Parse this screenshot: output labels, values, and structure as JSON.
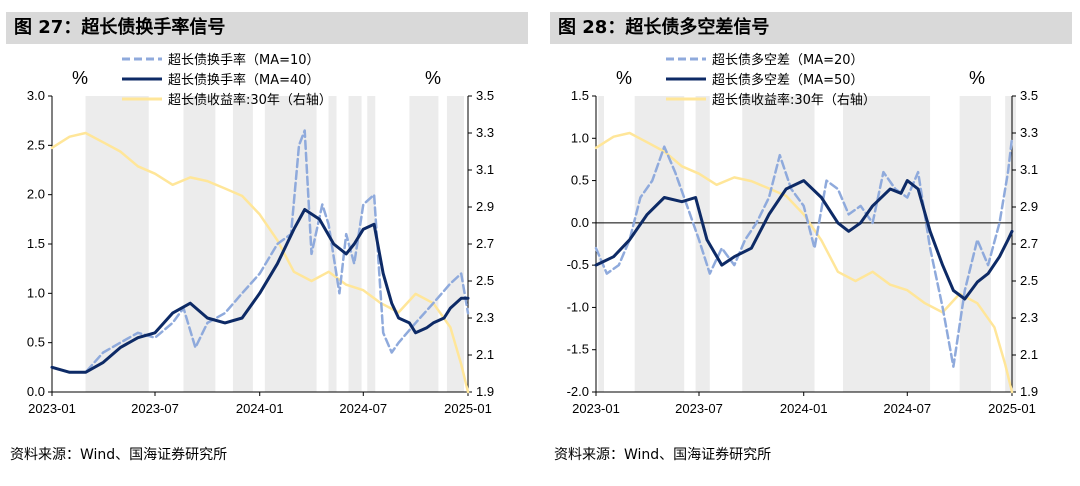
{
  "charts": [
    {
      "title": "图 27：超长债换手率信号",
      "source": "资料来源：Wind、国海证券研究所",
      "left_unit": "%",
      "right_unit": "%",
      "legend": [
        {
          "label": "超长债换手率（MA=10）",
          "color": "#8faadc",
          "style": "dashed"
        },
        {
          "label": "超长债换手率（MA=40）",
          "color": "#0d2a66",
          "style": "solid"
        },
        {
          "label": "超长债收益率:30年（右轴）",
          "color": "#ffe699",
          "style": "solid"
        }
      ],
      "y_ticks": [
        "3.0",
        "2.5",
        "2.0",
        "1.5",
        "1.0",
        "0.5",
        "0.0"
      ],
      "y2_ticks": [
        "3.5",
        "3.3",
        "3.1",
        "2.9",
        "2.7",
        "2.5",
        "2.3",
        "2.1",
        "1.9"
      ],
      "x_ticks": [
        "2023-01",
        "2023-07",
        "2024-01",
        "2024-07",
        "2025-01"
      ]
    },
    {
      "title": "图 28：超长债多空差信号",
      "source": "资料来源：Wind、国海证券研究所",
      "left_unit": "%",
      "right_unit": "%",
      "legend": [
        {
          "label": "超长债多空差（MA=20）",
          "color": "#8faadc",
          "style": "dashed"
        },
        {
          "label": "超长债多空差（MA=50）",
          "color": "#0d2a66",
          "style": "solid"
        },
        {
          "label": "超长债收益率:30年（右轴）",
          "color": "#ffe699",
          "style": "solid"
        }
      ],
      "y_ticks": [
        "1.5",
        "1.0",
        "0.5",
        "0.0",
        "-0.5",
        "-1.0",
        "-1.5",
        "-2.0"
      ],
      "y2_ticks": [
        "3.5",
        "3.3",
        "3.1",
        "2.9",
        "2.7",
        "2.5",
        "2.3",
        "2.1",
        "1.9"
      ],
      "x_ticks": [
        "2023-01",
        "2023-07",
        "2024-01",
        "2024-07",
        "2025-01"
      ]
    }
  ],
  "chart_data": [
    {
      "type": "line",
      "x_range": [
        "2023-01",
        "2025-01"
      ],
      "ylim": [
        0,
        3.0
      ],
      "y2lim": [
        1.9,
        3.5
      ],
      "shaded_periods": [
        [
          "2023-03",
          "2023-06-20"
        ],
        [
          "2023-08-20",
          "2023-10-15"
        ],
        [
          "2023-11-15",
          "2023-12-20"
        ],
        [
          "2024-01-10",
          "2024-04-10"
        ],
        [
          "2024-05-01",
          "2024-05-15"
        ],
        [
          "2024-06-05",
          "2024-06-28"
        ],
        [
          "2024-07-08",
          "2024-07-22"
        ],
        [
          "2024-09-20",
          "2024-11-10"
        ],
        [
          "2024-11-25",
          "2024-12-25"
        ]
      ],
      "series": [
        {
          "name": "超长债换手率（MA=10）",
          "axis": "left",
          "color": "#8faadc",
          "x": [
            "2023-01-01",
            "2023-02-01",
            "2023-03-01",
            "2023-04-01",
            "2023-05-01",
            "2023-06-01",
            "2023-07-01",
            "2023-08-01",
            "2023-08-20",
            "2023-09-10",
            "2023-10-01",
            "2023-11-01",
            "2023-12-01",
            "2024-01-01",
            "2024-02-01",
            "2024-02-25",
            "2024-03-10",
            "2024-03-20",
            "2024-04-01",
            "2024-04-20",
            "2024-05-01",
            "2024-05-20",
            "2024-06-01",
            "2024-06-15",
            "2024-07-01",
            "2024-07-20",
            "2024-08-05",
            "2024-08-20",
            "2024-09-01",
            "2024-10-01",
            "2024-11-01",
            "2024-12-01",
            "2024-12-20",
            "2025-01-01"
          ],
          "y": [
            0.25,
            0.2,
            0.2,
            0.4,
            0.5,
            0.6,
            0.55,
            0.7,
            0.85,
            0.45,
            0.7,
            0.8,
            1.0,
            1.2,
            1.5,
            1.6,
            2.5,
            2.65,
            1.4,
            1.9,
            1.7,
            1.0,
            1.6,
            1.3,
            1.9,
            2.0,
            0.6,
            0.4,
            0.5,
            0.7,
            0.9,
            1.1,
            1.2,
            0.8
          ]
        },
        {
          "name": "超长债换手率（MA=40）",
          "axis": "left",
          "color": "#0d2a66",
          "x": [
            "2023-01-01",
            "2023-02-01",
            "2023-03-01",
            "2023-04-01",
            "2023-05-01",
            "2023-06-01",
            "2023-07-01",
            "2023-08-01",
            "2023-09-01",
            "2023-10-01",
            "2023-11-01",
            "2023-12-01",
            "2024-01-01",
            "2024-02-01",
            "2024-03-01",
            "2024-03-20",
            "2024-04-15",
            "2024-05-10",
            "2024-06-01",
            "2024-06-15",
            "2024-07-01",
            "2024-07-20",
            "2024-08-05",
            "2024-08-20",
            "2024-09-01",
            "2024-09-20",
            "2024-10-01",
            "2024-10-20",
            "2024-11-01",
            "2024-11-20",
            "2024-12-01",
            "2024-12-20",
            "2025-01-01"
          ],
          "y": [
            0.25,
            0.2,
            0.2,
            0.3,
            0.45,
            0.55,
            0.6,
            0.8,
            0.9,
            0.75,
            0.7,
            0.75,
            1.0,
            1.3,
            1.65,
            1.85,
            1.75,
            1.5,
            1.4,
            1.5,
            1.65,
            1.7,
            1.2,
            0.9,
            0.75,
            0.7,
            0.6,
            0.65,
            0.7,
            0.75,
            0.85,
            0.95,
            0.95
          ]
        },
        {
          "name": "超长债收益率:30年（右轴）",
          "axis": "right",
          "color": "#ffe699",
          "x": [
            "2023-01-01",
            "2023-02-01",
            "2023-03-01",
            "2023-04-01",
            "2023-05-01",
            "2023-06-01",
            "2023-07-01",
            "2023-08-01",
            "2023-09-01",
            "2023-10-01",
            "2023-11-01",
            "2023-12-01",
            "2024-01-01",
            "2024-02-01",
            "2024-03-01",
            "2024-04-01",
            "2024-05-01",
            "2024-06-01",
            "2024-07-01",
            "2024-08-01",
            "2024-09-01",
            "2024-10-01",
            "2024-11-01",
            "2024-12-01",
            "2024-12-20",
            "2025-01-01"
          ],
          "y": [
            3.22,
            3.28,
            3.3,
            3.25,
            3.2,
            3.12,
            3.08,
            3.02,
            3.06,
            3.04,
            3.0,
            2.96,
            2.86,
            2.72,
            2.55,
            2.5,
            2.55,
            2.48,
            2.45,
            2.38,
            2.33,
            2.43,
            2.38,
            2.25,
            2.05,
            1.9
          ]
        }
      ]
    },
    {
      "type": "line",
      "x_range": [
        "2023-01",
        "2025-01"
      ],
      "ylim": [
        -2.0,
        1.5
      ],
      "y2lim": [
        1.9,
        3.5
      ],
      "shaded_periods": [
        [
          "2023-01-05",
          "2023-01-15"
        ],
        [
          "2023-03-10",
          "2023-06-05"
        ],
        [
          "2023-06-25",
          "2023-07-20"
        ],
        [
          "2023-09-15",
          "2024-01-20"
        ],
        [
          "2024-03-10",
          "2024-08-10"
        ],
        [
          "2024-10-01",
          "2024-11-25"
        ],
        [
          "2024-12-20",
          "2025-01-08"
        ]
      ],
      "series": [
        {
          "name": "超长债多空差（MA=20）",
          "axis": "left",
          "color": "#8faadc",
          "x": [
            "2023-01-01",
            "2023-01-20",
            "2023-02-10",
            "2023-03-01",
            "2023-03-20",
            "2023-04-10",
            "2023-05-01",
            "2023-05-20",
            "2023-06-10",
            "2023-07-01",
            "2023-07-20",
            "2023-08-10",
            "2023-09-01",
            "2023-09-20",
            "2023-10-10",
            "2023-11-01",
            "2023-11-20",
            "2023-12-10",
            "2024-01-01",
            "2024-01-20",
            "2024-02-10",
            "2024-03-01",
            "2024-03-20",
            "2024-04-10",
            "2024-05-01",
            "2024-05-20",
            "2024-06-10",
            "2024-07-01",
            "2024-07-20",
            "2024-08-10",
            "2024-09-01",
            "2024-09-20",
            "2024-10-10",
            "2024-11-01",
            "2024-11-20",
            "2024-12-10",
            "2024-12-25",
            "2025-01-01"
          ],
          "y": [
            -0.3,
            -0.6,
            -0.5,
            -0.2,
            0.3,
            0.5,
            0.9,
            0.6,
            0.2,
            -0.2,
            -0.6,
            -0.3,
            -0.5,
            -0.2,
            0.0,
            0.3,
            0.8,
            0.4,
            0.2,
            -0.3,
            0.5,
            0.4,
            0.1,
            0.2,
            0.0,
            0.6,
            0.4,
            0.3,
            0.6,
            -0.3,
            -1.0,
            -1.7,
            -0.8,
            -0.2,
            -0.5,
            0.0,
            0.6,
            1.0
          ]
        },
        {
          "name": "超长债多空差（MA=50）",
          "axis": "left",
          "color": "#0d2a66",
          "x": [
            "2023-01-01",
            "2023-02-01",
            "2023-03-01",
            "2023-04-01",
            "2023-05-01",
            "2023-06-01",
            "2023-06-25",
            "2023-07-15",
            "2023-08-10",
            "2023-09-01",
            "2023-10-01",
            "2023-11-01",
            "2023-12-01",
            "2024-01-01",
            "2024-02-01",
            "2024-03-01",
            "2024-03-20",
            "2024-04-10",
            "2024-05-01",
            "2024-06-01",
            "2024-06-20",
            "2024-07-01",
            "2024-07-20",
            "2024-08-10",
            "2024-09-01",
            "2024-09-20",
            "2024-10-10",
            "2024-11-01",
            "2024-11-20",
            "2024-12-10",
            "2024-12-25",
            "2025-01-01"
          ],
          "y": [
            -0.5,
            -0.4,
            -0.2,
            0.1,
            0.3,
            0.25,
            0.3,
            -0.2,
            -0.5,
            -0.4,
            -0.3,
            0.1,
            0.4,
            0.5,
            0.3,
            0.0,
            -0.1,
            0.0,
            0.2,
            0.4,
            0.35,
            0.5,
            0.4,
            -0.1,
            -0.5,
            -0.8,
            -0.9,
            -0.7,
            -0.6,
            -0.4,
            -0.2,
            -0.1
          ]
        },
        {
          "name": "超长债收益率:30年（右轴）",
          "axis": "right",
          "color": "#ffe699",
          "x": [
            "2023-01-01",
            "2023-02-01",
            "2023-03-01",
            "2023-04-01",
            "2023-05-01",
            "2023-06-01",
            "2023-07-01",
            "2023-08-01",
            "2023-09-01",
            "2023-10-01",
            "2023-11-01",
            "2023-12-01",
            "2024-01-01",
            "2024-02-01",
            "2024-03-01",
            "2024-04-01",
            "2024-05-01",
            "2024-06-01",
            "2024-07-01",
            "2024-08-01",
            "2024-09-01",
            "2024-10-01",
            "2024-11-01",
            "2024-12-01",
            "2024-12-20",
            "2025-01-01"
          ],
          "y": [
            3.22,
            3.28,
            3.3,
            3.25,
            3.2,
            3.12,
            3.08,
            3.02,
            3.06,
            3.04,
            3.0,
            2.96,
            2.86,
            2.72,
            2.55,
            2.5,
            2.55,
            2.48,
            2.45,
            2.38,
            2.33,
            2.43,
            2.38,
            2.25,
            2.05,
            1.9
          ]
        }
      ]
    }
  ]
}
